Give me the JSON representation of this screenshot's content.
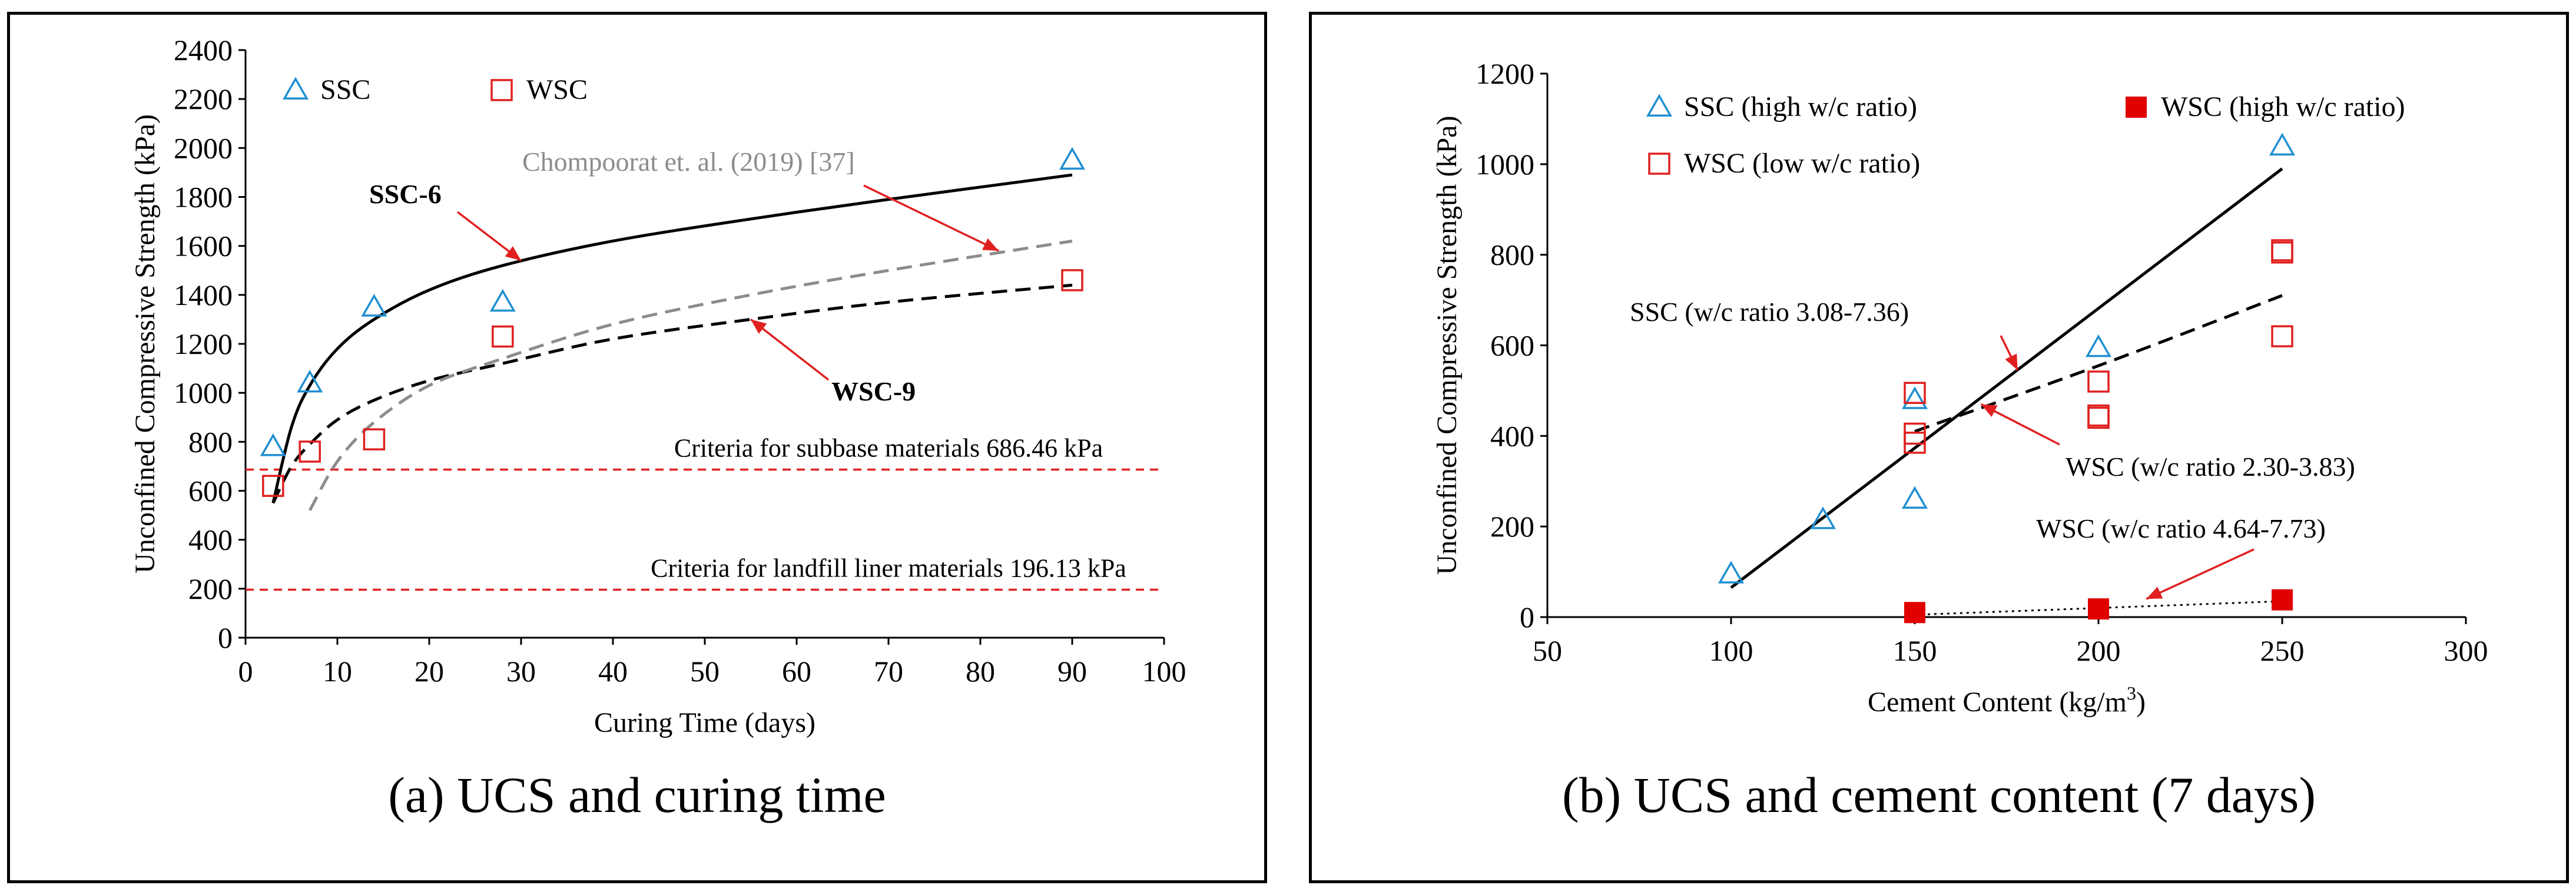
{
  "chart_data": [
    {
      "type": "scatter",
      "caption": "(a) UCS and curing time",
      "xlabel": "Curing Time (days)",
      "ylabel": "Unconfined Compressive Strength (kPa)",
      "xlim": [
        0,
        100
      ],
      "ylim": [
        0,
        2400
      ],
      "xticks": [
        0,
        10,
        20,
        30,
        40,
        50,
        60,
        70,
        80,
        90,
        100
      ],
      "yticks": [
        0,
        200,
        400,
        600,
        800,
        1000,
        1200,
        1400,
        1600,
        1800,
        2000,
        2200,
        2400
      ],
      "grid": false,
      "legend": "top-left",
      "series": [
        {
          "name": "SSC",
          "marker": "triangle",
          "color": "#1f8fd0",
          "x": [
            3,
            7,
            14,
            28,
            90
          ],
          "y": [
            780,
            1040,
            1350,
            1370,
            1950
          ]
        },
        {
          "name": "WSC",
          "marker": "square",
          "color": "#e02020",
          "x": [
            3,
            7,
            14,
            28,
            90
          ],
          "y": [
            620,
            760,
            810,
            1230,
            1460
          ]
        }
      ],
      "curves": [
        {
          "name": "SSC-6",
          "style": "solid",
          "color": "#000000",
          "x": [
            3,
            5,
            7,
            10,
            14,
            20,
            28,
            40,
            55,
            70,
            90
          ],
          "y": [
            550,
            860,
            1030,
            1180,
            1300,
            1420,
            1520,
            1620,
            1710,
            1790,
            1890
          ]
        },
        {
          "name": "WSC-9",
          "style": "dashed",
          "color": "#000000",
          "x": [
            3,
            5,
            7,
            10,
            14,
            20,
            28,
            40,
            55,
            70,
            90
          ],
          "y": [
            550,
            700,
            790,
            890,
            970,
            1050,
            1120,
            1220,
            1300,
            1370,
            1440
          ]
        },
        {
          "name": "Chompoorat",
          "style": "dashed",
          "color": "#8c8c8c",
          "x": [
            7,
            10,
            14,
            20,
            28,
            40,
            55,
            70,
            90
          ],
          "y": [
            520,
            720,
            880,
            1030,
            1140,
            1280,
            1400,
            1500,
            1620
          ]
        }
      ],
      "thresholds": [
        {
          "y": 686.46,
          "color": "#e02020",
          "label": "Criteria for subbase materials 686.46 kPa"
        },
        {
          "y": 196.13,
          "color": "#e02020",
          "label": "Criteria for landfill liner materials 196.13 kPa"
        }
      ],
      "annotations": [
        {
          "text": "SSC-6",
          "bold": true,
          "target_x": 30,
          "target_y": 1540
        },
        {
          "text": "WSC-9",
          "bold": true,
          "target_x": 55,
          "target_y": 1300
        },
        {
          "text": "Chompoorat et. al. (2019) [37]",
          "bold": false,
          "color": "#8c8c8c",
          "target_x": 82,
          "target_y": 1580
        }
      ]
    },
    {
      "type": "scatter",
      "caption": "(b) UCS and cement content (7 days)",
      "xlabel": "Cement Content (kg/m",
      "xlabel_sup": "3",
      "xlabel_end": ")",
      "ylabel": "Unconfined Compressive Strength (kPa)",
      "xlim": [
        50,
        300
      ],
      "ylim": [
        0,
        1200
      ],
      "xticks": [
        50,
        100,
        150,
        200,
        250,
        300
      ],
      "yticks": [
        0,
        200,
        400,
        600,
        800,
        1000,
        1200
      ],
      "grid": false,
      "legend": "top",
      "series": [
        {
          "name": "SSC (high w/c ratio)",
          "marker": "triangle",
          "color": "#1f8fd0",
          "x": [
            100,
            125,
            150,
            150,
            200,
            250
          ],
          "y": [
            95,
            215,
            260,
            480,
            595,
            1040
          ]
        },
        {
          "name": "WSC (low w/c ratio)",
          "marker": "square",
          "color": "#e02020",
          "x": [
            150,
            150,
            150,
            200,
            200,
            200,
            250,
            250,
            250
          ],
          "y": [
            495,
            405,
            385,
            520,
            445,
            440,
            810,
            805,
            620
          ]
        },
        {
          "name": "WSC (high w/c ratio)",
          "marker": "filled-square",
          "color": "#e00000",
          "x": [
            150,
            200,
            250
          ],
          "y": [
            10,
            18,
            38
          ]
        }
      ],
      "curves": [
        {
          "name": "SSC fit",
          "style": "solid",
          "color": "#000000",
          "x": [
            100,
            250
          ],
          "y": [
            65,
            990
          ]
        },
        {
          "name": "WSC low fit",
          "style": "dashed",
          "color": "#000000",
          "x": [
            150,
            200,
            250
          ],
          "y": [
            410,
            555,
            710
          ]
        },
        {
          "name": "WSC high fit",
          "style": "dotted",
          "color": "#000000",
          "x": [
            150,
            200,
            250
          ],
          "y": [
            5,
            20,
            35
          ]
        }
      ],
      "annotations": [
        {
          "text": "SSC (w/c ratio 3.08-7.36)",
          "target_x": 178,
          "target_y": 545
        },
        {
          "text": "WSC (w/c ratio 2.30-3.83)",
          "target_x": 168,
          "target_y": 470
        },
        {
          "text": "WSC (w/c ratio 4.64-7.73)",
          "target_x": 213,
          "target_y": 40
        }
      ]
    }
  ]
}
